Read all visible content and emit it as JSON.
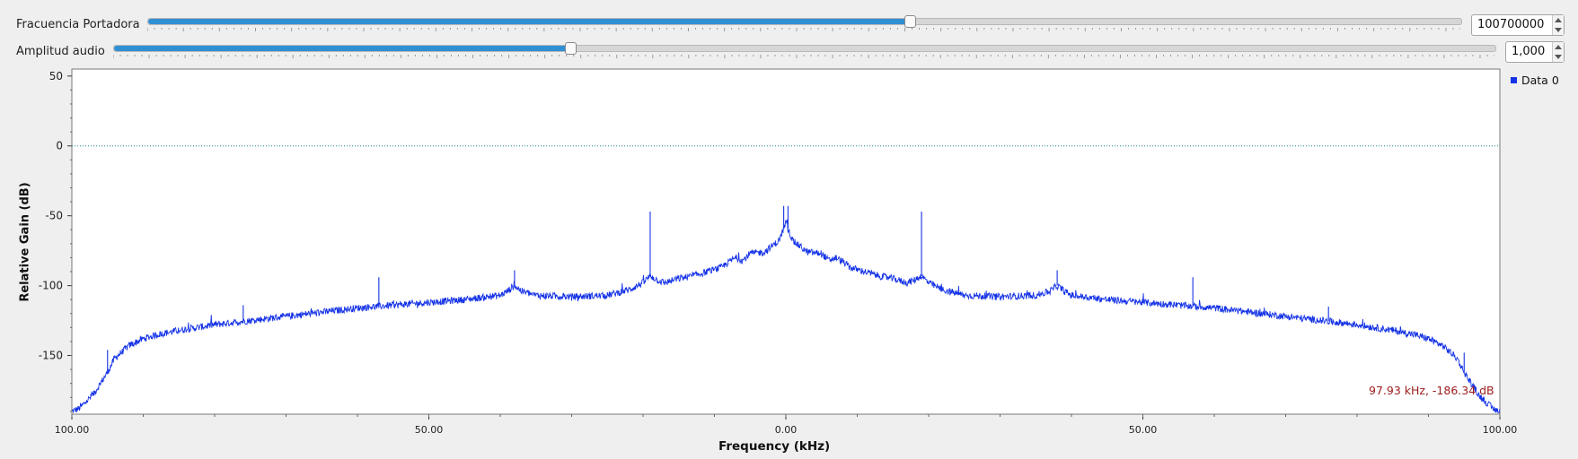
{
  "controls": {
    "carrier": {
      "label": "Fracuencia Portadora",
      "value": "100700000",
      "position": 0.58
    },
    "audio": {
      "label": "Amplitud audio",
      "value": "1,000",
      "position": 0.33
    }
  },
  "readout": "97.93 kHz, -186.34 dB",
  "colors": {
    "trace": "#1432e6",
    "marker_line": "#1a8a8a",
    "readout": "#9b1b1b",
    "slider": "#2f8fd3"
  },
  "chart_data": {
    "type": "line",
    "title": "",
    "xlabel": "Frequency (kHz)",
    "ylabel": "Relative Gain (dB)",
    "xlim": [
      -100,
      100
    ],
    "ylim": [
      -192,
      55
    ],
    "x_ticks": [
      -100,
      -50,
      0,
      50,
      100
    ],
    "x_tick_labels": [
      "100.00",
      "50.00",
      "0.00",
      "50.00",
      "100.00"
    ],
    "y_ticks": [
      50,
      0,
      -50,
      -100,
      -150
    ],
    "y_tick_labels": [
      "50",
      "0",
      "-50",
      "-100",
      "-150"
    ],
    "reference_line_db": 0,
    "legend": {
      "entries": [
        "Data 0"
      ],
      "placement": "right"
    },
    "series": [
      {
        "name": "Data 0",
        "x": [
          -100,
          -99,
          -97,
          -95,
          -94,
          -92,
          -90,
          -88,
          -85,
          -80,
          -75,
          -70,
          -65,
          -60,
          -55,
          -50,
          -45,
          -40,
          -39,
          -38,
          -37,
          -35,
          -30,
          -25,
          -22,
          -20,
          -19,
          -18,
          -17,
          -15,
          -13,
          -11,
          -9,
          -8,
          -7,
          -6,
          -5,
          -3,
          -2,
          -1,
          -0.5,
          0,
          0.5,
          1,
          2,
          3,
          5,
          6,
          7,
          8,
          9,
          11,
          13,
          15,
          17,
          18,
          19,
          20,
          22,
          25,
          30,
          35,
          37,
          38,
          39,
          40,
          45,
          50,
          55,
          60,
          65,
          70,
          75,
          80,
          85,
          88,
          90,
          92,
          94,
          95,
          97,
          99,
          100
        ],
        "y": [
          -190,
          -188,
          -178,
          -162,
          -152,
          -143,
          -138,
          -135,
          -132,
          -128,
          -125,
          -122,
          -119,
          -116,
          -114,
          -112,
          -110,
          -107,
          -104,
          -100,
          -104,
          -107,
          -108,
          -107,
          -103,
          -98,
          -93,
          -96,
          -98,
          -95,
          -93,
          -90,
          -87,
          -83,
          -80,
          -82,
          -77,
          -76,
          -72,
          -68,
          -62,
          -55,
          -62,
          -68,
          -72,
          -76,
          -77,
          -82,
          -80,
          -83,
          -87,
          -90,
          -93,
          -95,
          -98,
          -96,
          -93,
          -98,
          -103,
          -107,
          -108,
          -107,
          -104,
          -100,
          -104,
          -107,
          -110,
          -112,
          -114,
          -116,
          -119,
          -122,
          -125,
          -128,
          -132,
          -135,
          -138,
          -143,
          -152,
          -162,
          -178,
          -188,
          -190
        ]
      }
    ],
    "spikes": [
      {
        "x": -76,
        "y": -114
      },
      {
        "x": -57,
        "y": -94
      },
      {
        "x": -38,
        "y": -89
      },
      {
        "x": -19,
        "y": -47
      },
      {
        "x": -0.3,
        "y": -43
      },
      {
        "x": 0.3,
        "y": -43
      },
      {
        "x": 19,
        "y": -47
      },
      {
        "x": 38,
        "y": -89
      },
      {
        "x": 57,
        "y": -94
      },
      {
        "x": 76,
        "y": -115
      },
      {
        "x": -95,
        "y": -146
      },
      {
        "x": 95,
        "y": -148
      }
    ]
  }
}
